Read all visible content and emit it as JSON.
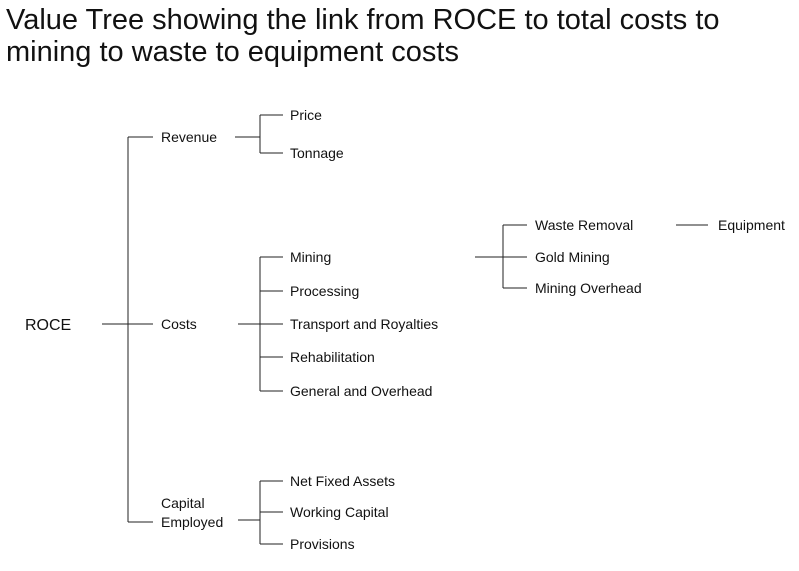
{
  "title": "Value Tree showing the link from ROCE to total costs to mining to waste to equipment costs",
  "tree": {
    "root": "ROCE",
    "branches": [
      {
        "label": "Revenue",
        "children": [
          "Price",
          "Tonnage"
        ]
      },
      {
        "label": "Costs",
        "children": [
          {
            "label": "Mining",
            "children": [
              {
                "label": "Waste Removal",
                "children": [
                  "Equipment"
                ]
              },
              "Gold Mining",
              "Mining Overhead"
            ]
          },
          "Processing",
          "Transport and Royalties",
          "Rehabilitation",
          "General and Overhead"
        ]
      },
      {
        "label_lines": [
          "Capital",
          "Employed"
        ],
        "children": [
          "Net Fixed Assets",
          "Working Capital",
          "Provisions"
        ]
      }
    ]
  },
  "labels": {
    "root": "ROCE",
    "revenue": "Revenue",
    "price": "Price",
    "tonnage": "Tonnage",
    "costs": "Costs",
    "mining": "Mining",
    "processing": "Processing",
    "transport": "Transport and Royalties",
    "rehabilitation": "Rehabilitation",
    "general": "General and Overhead",
    "waste_removal": "Waste Removal",
    "gold_mining": "Gold Mining",
    "mining_overhead": "Mining Overhead",
    "equipment": "Equipment",
    "capital_line1": "Capital",
    "capital_line2": "Employed",
    "net_fixed_assets": "Net Fixed Assets",
    "working_capital": "Working Capital",
    "provisions": "Provisions"
  }
}
